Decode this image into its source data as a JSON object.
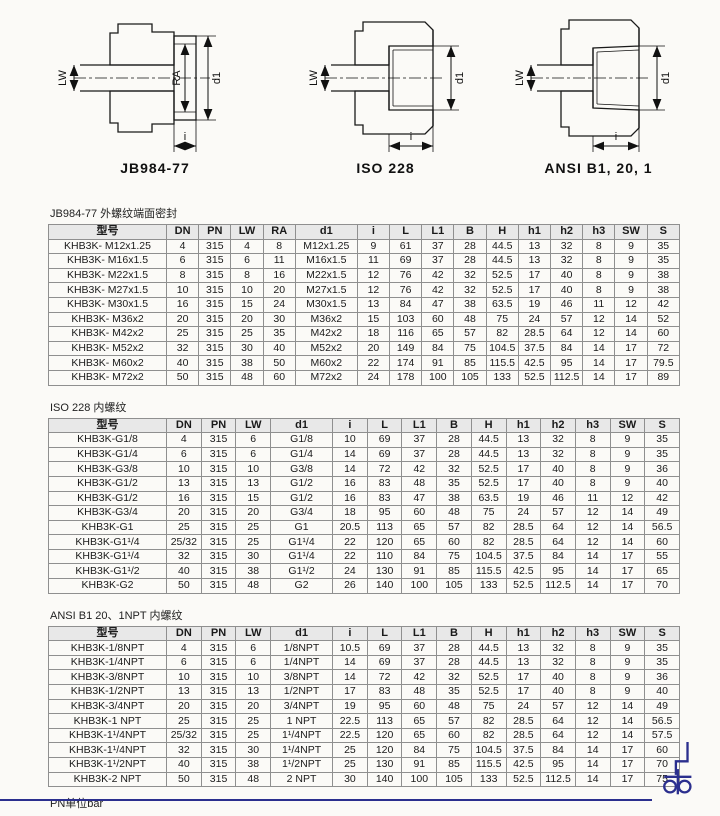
{
  "colors": {
    "accent_navy": "#2b2f8e",
    "table_header_bg": "#e8e8e8"
  },
  "figures": [
    {
      "caption": "JB984-77",
      "dim_bore": "LW",
      "dim_face": "RA",
      "dim_outer": "d1",
      "dim_depth": "i"
    },
    {
      "caption": "ISO 228",
      "dim_bore": "LW",
      "dim_outer": "d1",
      "dim_depth": "i"
    },
    {
      "caption": "ANSI B1, 20, 1",
      "dim_bore": "LW",
      "dim_outer": "d1",
      "dim_depth": "i"
    }
  ],
  "tables": [
    {
      "title": "JB984-77 外螺纹端面密封",
      "headers": [
        "型号",
        "DN",
        "PN",
        "LW",
        "RA",
        "d1",
        "i",
        "L",
        "L1",
        "B",
        "H",
        "h1",
        "h2",
        "h3",
        "SW",
        "S"
      ],
      "rows": [
        [
          "KHB3K- M12x1.25",
          "4",
          "315",
          "4",
          "8",
          "M12x1.25",
          "9",
          "61",
          "37",
          "28",
          "44.5",
          "13",
          "32",
          "8",
          "9",
          "35"
        ],
        [
          "KHB3K- M16x1.5",
          "6",
          "315",
          "6",
          "11",
          "M16x1.5",
          "11",
          "69",
          "37",
          "28",
          "44.5",
          "13",
          "32",
          "8",
          "9",
          "35"
        ],
        [
          "KHB3K- M22x1.5",
          "8",
          "315",
          "8",
          "16",
          "M22x1.5",
          "12",
          "76",
          "42",
          "32",
          "52.5",
          "17",
          "40",
          "8",
          "9",
          "38"
        ],
        [
          "KHB3K- M27x1.5",
          "10",
          "315",
          "10",
          "20",
          "M27x1.5",
          "12",
          "76",
          "42",
          "32",
          "52.5",
          "17",
          "40",
          "8",
          "9",
          "38"
        ],
        [
          "KHB3K- M30x1.5",
          "16",
          "315",
          "15",
          "24",
          "M30x1.5",
          "13",
          "84",
          "47",
          "38",
          "63.5",
          "19",
          "46",
          "11",
          "12",
          "42"
        ],
        [
          "KHB3K- M36x2",
          "20",
          "315",
          "20",
          "30",
          "M36x2",
          "15",
          "103",
          "60",
          "48",
          "75",
          "24",
          "57",
          "12",
          "14",
          "52"
        ],
        [
          "KHB3K- M42x2",
          "25",
          "315",
          "25",
          "35",
          "M42x2",
          "18",
          "116",
          "65",
          "57",
          "82",
          "28.5",
          "64",
          "12",
          "14",
          "60"
        ],
        [
          "KHB3K- M52x2",
          "32",
          "315",
          "30",
          "40",
          "M52x2",
          "20",
          "149",
          "84",
          "75",
          "104.5",
          "37.5",
          "84",
          "14",
          "17",
          "72"
        ],
        [
          "KHB3K- M60x2",
          "40",
          "315",
          "38",
          "50",
          "M60x2",
          "22",
          "174",
          "91",
          "85",
          "115.5",
          "42.5",
          "95",
          "14",
          "17",
          "79.5"
        ],
        [
          "KHB3K- M72x2",
          "50",
          "315",
          "48",
          "60",
          "M72x2",
          "24",
          "178",
          "100",
          "105",
          "133",
          "52.5",
          "112.5",
          "14",
          "17",
          "89"
        ]
      ]
    },
    {
      "title": "ISO 228 内螺纹",
      "headers": [
        "型号",
        "DN",
        "PN",
        "LW",
        "d1",
        "i",
        "L",
        "L1",
        "B",
        "H",
        "h1",
        "h2",
        "h3",
        "SW",
        "S"
      ],
      "rows": [
        [
          "KHB3K-G1/8",
          "4",
          "315",
          "6",
          "G1/8",
          "10",
          "69",
          "37",
          "28",
          "44.5",
          "13",
          "32",
          "8",
          "9",
          "35"
        ],
        [
          "KHB3K-G1/4",
          "6",
          "315",
          "6",
          "G1/4",
          "14",
          "69",
          "37",
          "28",
          "44.5",
          "13",
          "32",
          "8",
          "9",
          "35"
        ],
        [
          "KHB3K-G3/8",
          "10",
          "315",
          "10",
          "G3/8",
          "14",
          "72",
          "42",
          "32",
          "52.5",
          "17",
          "40",
          "8",
          "9",
          "36"
        ],
        [
          "KHB3K-G1/2",
          "13",
          "315",
          "13",
          "G1/2",
          "16",
          "83",
          "48",
          "35",
          "52.5",
          "17",
          "40",
          "8",
          "9",
          "40"
        ],
        [
          "KHB3K-G1/2",
          "16",
          "315",
          "15",
          "G1/2",
          "16",
          "83",
          "47",
          "38",
          "63.5",
          "19",
          "46",
          "11",
          "12",
          "42"
        ],
        [
          "KHB3K-G3/4",
          "20",
          "315",
          "20",
          "G3/4",
          "18",
          "95",
          "60",
          "48",
          "75",
          "24",
          "57",
          "12",
          "14",
          "49"
        ],
        [
          "KHB3K-G1",
          "25",
          "315",
          "25",
          "G1",
          "20.5",
          "113",
          "65",
          "57",
          "82",
          "28.5",
          "64",
          "12",
          "14",
          "56.5"
        ],
        [
          "KHB3K-G1¹/4",
          "25/32",
          "315",
          "25",
          "G1¹/4",
          "22",
          "120",
          "65",
          "60",
          "82",
          "28.5",
          "64",
          "12",
          "14",
          "60"
        ],
        [
          "KHB3K-G1¹/4",
          "32",
          "315",
          "30",
          "G1¹/4",
          "22",
          "110",
          "84",
          "75",
          "104.5",
          "37.5",
          "84",
          "14",
          "17",
          "55"
        ],
        [
          "KHB3K-G1¹/2",
          "40",
          "315",
          "38",
          "G1¹/2",
          "24",
          "130",
          "91",
          "85",
          "115.5",
          "42.5",
          "95",
          "14",
          "17",
          "65"
        ],
        [
          "KHB3K-G2",
          "50",
          "315",
          "48",
          "G2",
          "26",
          "140",
          "100",
          "105",
          "133",
          "52.5",
          "112.5",
          "14",
          "17",
          "70"
        ]
      ]
    },
    {
      "title": "ANSI B1 20、1NPT 内螺纹",
      "headers": [
        "型号",
        "DN",
        "PN",
        "LW",
        "d1",
        "i",
        "L",
        "L1",
        "B",
        "H",
        "h1",
        "h2",
        "h3",
        "SW",
        "S"
      ],
      "rows": [
        [
          "KHB3K-1/8NPT",
          "4",
          "315",
          "6",
          "1/8NPT",
          "10.5",
          "69",
          "37",
          "28",
          "44.5",
          "13",
          "32",
          "8",
          "9",
          "35"
        ],
        [
          "KHB3K-1/4NPT",
          "6",
          "315",
          "6",
          "1/4NPT",
          "14",
          "69",
          "37",
          "28",
          "44.5",
          "13",
          "32",
          "8",
          "9",
          "35"
        ],
        [
          "KHB3K-3/8NPT",
          "10",
          "315",
          "10",
          "3/8NPT",
          "14",
          "72",
          "42",
          "32",
          "52.5",
          "17",
          "40",
          "8",
          "9",
          "36"
        ],
        [
          "KHB3K-1/2NPT",
          "13",
          "315",
          "13",
          "1/2NPT",
          "17",
          "83",
          "48",
          "35",
          "52.5",
          "17",
          "40",
          "8",
          "9",
          "40"
        ],
        [
          "KHB3K-3/4NPT",
          "20",
          "315",
          "20",
          "3/4NPT",
          "19",
          "95",
          "60",
          "48",
          "75",
          "24",
          "57",
          "12",
          "14",
          "49"
        ],
        [
          "KHB3K-1 NPT",
          "25",
          "315",
          "25",
          "1 NPT",
          "22.5",
          "113",
          "65",
          "57",
          "82",
          "28.5",
          "64",
          "12",
          "14",
          "56.5"
        ],
        [
          "KHB3K-1¹/4NPT",
          "25/32",
          "315",
          "25",
          "1¹/4NPT",
          "22.5",
          "120",
          "65",
          "60",
          "82",
          "28.5",
          "64",
          "12",
          "14",
          "57.5"
        ],
        [
          "KHB3K-1¹/4NPT",
          "32",
          "315",
          "30",
          "1¹/4NPT",
          "25",
          "120",
          "84",
          "75",
          "104.5",
          "37.5",
          "84",
          "14",
          "17",
          "60"
        ],
        [
          "KHB3K-1¹/2NPT",
          "40",
          "315",
          "38",
          "1¹/2NPT",
          "25",
          "130",
          "91",
          "85",
          "115.5",
          "42.5",
          "95",
          "14",
          "17",
          "70"
        ],
        [
          "KHB3K-2 NPT",
          "50",
          "315",
          "48",
          "2 NPT",
          "30",
          "140",
          "100",
          "105",
          "133",
          "52.5",
          "112.5",
          "14",
          "17",
          "75"
        ]
      ]
    }
  ],
  "footer": {
    "note": "PN单位bar"
  }
}
